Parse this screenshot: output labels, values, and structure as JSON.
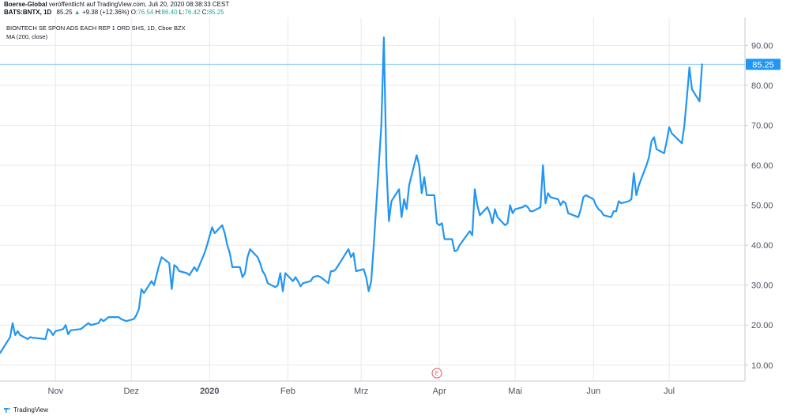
{
  "header": {
    "author": "Boerse-Global",
    "published_text": "veröffentlicht auf TradingView.com, Juli 20, 2020 08:38:33 CEST",
    "symbol": "BATS:BNTX, 1D",
    "last": "85.25",
    "change_arrow": "▲",
    "change": "+9.38 (+12.36%)",
    "ohlc": [
      {
        "key": "O:",
        "value": "76.54"
      },
      {
        "key": "H:",
        "value": "86.40"
      },
      {
        "key": "L:",
        "value": "76.42"
      },
      {
        "key": "C:",
        "value": "85.25"
      }
    ]
  },
  "legend": {
    "title": "BIONTECH SE SPON ADS EACH REP 1 ORD SHS, 1D, Cboe BZX",
    "indicator": "MA (200, close)"
  },
  "price_label": "85.25",
  "earnings_marker": "E",
  "footer": {
    "brand": "TradingView"
  },
  "colors": {
    "line": "#2196f3",
    "price_label_bg": "#2196f3",
    "price_line": "#8ccbf5",
    "grid": "#e8e9ed",
    "axis": "#50535e",
    "earnings": "#e05a5a"
  },
  "chart_data": {
    "type": "line",
    "title": "BIONTECH SE SPON ADS EACH REP 1 ORD SHS, 1D, Cboe BZX",
    "ylim": [
      6,
      97
    ],
    "y_ticks": [
      "10.00",
      "20.00",
      "30.00",
      "40.00",
      "50.00",
      "60.00",
      "70.00",
      "80.00",
      "90.00"
    ],
    "y_tick_values": [
      10,
      20,
      30,
      40,
      50,
      60,
      70,
      80,
      90
    ],
    "x_tick_labels": [
      "Nov",
      "Dez",
      "2020",
      "Feb",
      "Mrz",
      "Apr",
      "Mai",
      "Jun",
      "Jul"
    ],
    "x_tick_dates": [
      "2019-11-01",
      "2019-12-01",
      "2020-01-01",
      "2020-02-01",
      "2020-03-01",
      "2020-04-01",
      "2020-05-01",
      "2020-06-01",
      "2020-07-01"
    ],
    "x_range": [
      "2019-10-10",
      "2020-07-31"
    ],
    "grid": true,
    "earnings_date": "2020-03-31",
    "last_price": 85.25,
    "series": [
      {
        "values": [
          [
            "2019-10-10",
            13.0
          ],
          [
            "2019-10-11",
            14.0
          ],
          [
            "2019-10-14",
            17.0
          ],
          [
            "2019-10-15",
            20.5
          ],
          [
            "2019-10-16",
            17.5
          ],
          [
            "2019-10-17",
            18.5
          ],
          [
            "2019-10-18",
            17.5
          ],
          [
            "2019-10-21",
            16.5
          ],
          [
            "2019-10-22",
            17.0
          ],
          [
            "2019-10-23",
            16.8
          ],
          [
            "2019-10-24",
            16.8
          ],
          [
            "2019-10-25",
            16.7
          ],
          [
            "2019-10-28",
            16.5
          ],
          [
            "2019-10-29",
            19.0
          ],
          [
            "2019-10-30",
            18.5
          ],
          [
            "2019-10-31",
            17.5
          ],
          [
            "2019-11-01",
            18.5
          ],
          [
            "2019-11-04",
            19.0
          ],
          [
            "2019-11-05",
            20.0
          ],
          [
            "2019-11-06",
            17.7
          ],
          [
            "2019-11-07",
            18.7
          ],
          [
            "2019-11-08",
            18.8
          ],
          [
            "2019-11-11",
            19.0
          ],
          [
            "2019-11-12",
            19.5
          ],
          [
            "2019-11-13",
            20.0
          ],
          [
            "2019-11-14",
            20.5
          ],
          [
            "2019-11-15",
            20.0
          ],
          [
            "2019-11-18",
            20.5
          ],
          [
            "2019-11-19",
            21.5
          ],
          [
            "2019-11-20",
            21.0
          ],
          [
            "2019-11-21",
            21.5
          ],
          [
            "2019-11-22",
            22.0
          ],
          [
            "2019-11-25",
            22.0
          ],
          [
            "2019-11-26",
            22.0
          ],
          [
            "2019-11-27",
            21.5
          ],
          [
            "2019-11-29",
            21.0
          ],
          [
            "2019-12-02",
            21.5
          ],
          [
            "2019-12-03",
            22.5
          ],
          [
            "2019-12-04",
            24.0
          ],
          [
            "2019-12-05",
            29.0
          ],
          [
            "2019-12-06",
            28.0
          ],
          [
            "2019-12-09",
            31.0
          ],
          [
            "2019-12-10",
            30.0
          ],
          [
            "2019-12-11",
            32.5
          ],
          [
            "2019-12-12",
            35.0
          ],
          [
            "2019-12-13",
            37.0
          ],
          [
            "2019-12-16",
            35.5
          ],
          [
            "2019-12-17",
            29.0
          ],
          [
            "2019-12-18",
            35.0
          ],
          [
            "2019-12-19",
            34.5
          ],
          [
            "2019-12-20",
            33.5
          ],
          [
            "2019-12-23",
            33.0
          ],
          [
            "2019-12-24",
            32.5
          ],
          [
            "2019-12-26",
            34.5
          ],
          [
            "2019-12-27",
            33.5
          ],
          [
            "2019-12-30",
            38.0
          ],
          [
            "2019-12-31",
            40.0
          ],
          [
            "2020-01-02",
            44.5
          ],
          [
            "2020-01-03",
            43.0
          ],
          [
            "2020-01-06",
            45.0
          ],
          [
            "2020-01-07",
            43.0
          ],
          [
            "2020-01-08",
            40.0
          ],
          [
            "2020-01-09",
            38.0
          ],
          [
            "2020-01-10",
            34.5
          ],
          [
            "2020-01-13",
            34.5
          ],
          [
            "2020-01-14",
            32.0
          ],
          [
            "2020-01-15",
            33.0
          ],
          [
            "2020-01-16",
            37.0
          ],
          [
            "2020-01-17",
            39.0
          ],
          [
            "2020-01-20",
            37.0
          ],
          [
            "2020-01-21",
            35.5
          ],
          [
            "2020-01-22",
            33.5
          ],
          [
            "2020-01-23",
            32.5
          ],
          [
            "2020-01-24",
            30.5
          ],
          [
            "2020-01-27",
            29.5
          ],
          [
            "2020-01-28",
            30.0
          ],
          [
            "2020-01-29",
            33.0
          ],
          [
            "2020-01-30",
            28.5
          ],
          [
            "2020-01-31",
            33.0
          ],
          [
            "2020-02-03",
            31.0
          ],
          [
            "2020-02-04",
            32.0
          ],
          [
            "2020-02-05",
            31.0
          ],
          [
            "2020-02-06",
            29.7
          ],
          [
            "2020-02-07",
            30.5
          ],
          [
            "2020-02-10",
            31.0
          ],
          [
            "2020-02-11",
            32.0
          ],
          [
            "2020-02-12",
            32.2
          ],
          [
            "2020-02-13",
            32.3
          ],
          [
            "2020-02-14",
            32.0
          ],
          [
            "2020-02-17",
            30.5
          ],
          [
            "2020-02-18",
            33.5
          ],
          [
            "2020-02-19",
            33.5
          ],
          [
            "2020-02-20",
            34.0
          ],
          [
            "2020-02-21",
            35.0
          ],
          [
            "2020-02-24",
            38.0
          ],
          [
            "2020-02-25",
            39.0
          ],
          [
            "2020-02-26",
            37.0
          ],
          [
            "2020-02-27",
            38.0
          ],
          [
            "2020-02-28",
            33.5
          ],
          [
            "2020-03-02",
            34.0
          ],
          [
            "2020-03-03",
            32.0
          ],
          [
            "2020-03-04",
            28.5
          ],
          [
            "2020-03-05",
            31.0
          ],
          [
            "2020-03-06",
            40.0
          ],
          [
            "2020-03-09",
            70.0
          ],
          [
            "2020-03-10",
            92.0
          ],
          [
            "2020-03-11",
            60.0
          ],
          [
            "2020-03-12",
            46.0
          ],
          [
            "2020-03-13",
            51.0
          ],
          [
            "2020-03-16",
            54.0
          ],
          [
            "2020-03-17",
            47.0
          ],
          [
            "2020-03-18",
            51.5
          ],
          [
            "2020-03-19",
            49.0
          ],
          [
            "2020-03-20",
            55.0
          ],
          [
            "2020-03-23",
            62.5
          ],
          [
            "2020-03-24",
            60.0
          ],
          [
            "2020-03-25",
            53.0
          ],
          [
            "2020-03-26",
            57.0
          ],
          [
            "2020-03-27",
            52.5
          ],
          [
            "2020-03-30",
            52.5
          ],
          [
            "2020-03-31",
            45.5
          ],
          [
            "2020-04-01",
            45.0
          ],
          [
            "2020-04-02",
            45.5
          ],
          [
            "2020-04-03",
            41.5
          ],
          [
            "2020-04-06",
            41.5
          ],
          [
            "2020-04-07",
            38.5
          ],
          [
            "2020-04-08",
            38.7
          ],
          [
            "2020-04-09",
            40.0
          ],
          [
            "2020-04-13",
            43.5
          ],
          [
            "2020-04-14",
            42.5
          ],
          [
            "2020-04-15",
            54.0
          ],
          [
            "2020-04-16",
            50.0
          ],
          [
            "2020-04-17",
            47.5
          ],
          [
            "2020-04-20",
            49.5
          ],
          [
            "2020-04-21",
            48.0
          ],
          [
            "2020-04-22",
            45.5
          ],
          [
            "2020-04-23",
            49.0
          ],
          [
            "2020-04-24",
            47.0
          ],
          [
            "2020-04-27",
            45.0
          ],
          [
            "2020-04-28",
            45.5
          ],
          [
            "2020-04-29",
            50.0
          ],
          [
            "2020-04-30",
            48.0
          ],
          [
            "2020-05-01",
            49.0
          ],
          [
            "2020-05-04",
            49.5
          ],
          [
            "2020-05-05",
            50.0
          ],
          [
            "2020-05-06",
            49.5
          ],
          [
            "2020-05-07",
            48.5
          ],
          [
            "2020-05-08",
            48.5
          ],
          [
            "2020-05-11",
            49.5
          ],
          [
            "2020-05-12",
            60.0
          ],
          [
            "2020-05-13",
            50.5
          ],
          [
            "2020-05-14",
            53.0
          ],
          [
            "2020-05-15",
            52.0
          ],
          [
            "2020-05-18",
            51.5
          ],
          [
            "2020-05-19",
            50.0
          ],
          [
            "2020-05-20",
            51.0
          ],
          [
            "2020-05-21",
            50.5
          ],
          [
            "2020-05-22",
            48.0
          ],
          [
            "2020-05-26",
            47.0
          ],
          [
            "2020-05-27",
            49.0
          ],
          [
            "2020-05-28",
            52.0
          ],
          [
            "2020-05-29",
            52.5
          ],
          [
            "2020-06-01",
            51.5
          ],
          [
            "2020-06-02",
            50.0
          ],
          [
            "2020-06-03",
            49.0
          ],
          [
            "2020-06-04",
            48.5
          ],
          [
            "2020-06-05",
            47.5
          ],
          [
            "2020-06-08",
            47.0
          ],
          [
            "2020-06-09",
            48.5
          ],
          [
            "2020-06-10",
            48.5
          ],
          [
            "2020-06-11",
            51.0
          ],
          [
            "2020-06-12",
            50.5
          ],
          [
            "2020-06-15",
            51.0
          ],
          [
            "2020-06-16",
            51.5
          ],
          [
            "2020-06-17",
            58.0
          ],
          [
            "2020-06-18",
            52.5
          ],
          [
            "2020-06-19",
            55.0
          ],
          [
            "2020-06-22",
            60.0
          ],
          [
            "2020-06-23",
            62.0
          ],
          [
            "2020-06-24",
            66.0
          ],
          [
            "2020-06-25",
            67.0
          ],
          [
            "2020-06-26",
            64.0
          ],
          [
            "2020-06-29",
            63.0
          ],
          [
            "2020-06-30",
            66.0
          ],
          [
            "2020-07-01",
            69.5
          ],
          [
            "2020-07-02",
            68.0
          ],
          [
            "2020-07-06",
            65.5
          ],
          [
            "2020-07-07",
            70.0
          ],
          [
            "2020-07-08",
            77.0
          ],
          [
            "2020-07-09",
            84.5
          ],
          [
            "2020-07-10",
            79.0
          ],
          [
            "2020-07-13",
            76.0
          ],
          [
            "2020-07-14",
            85.25
          ]
        ]
      }
    ]
  }
}
